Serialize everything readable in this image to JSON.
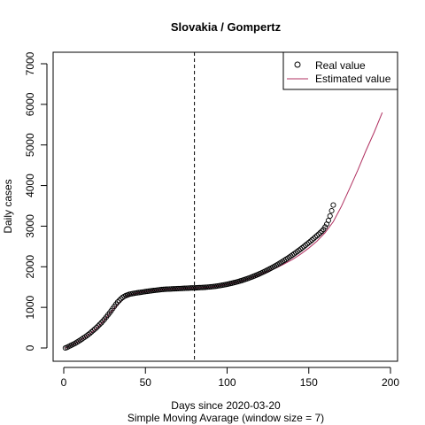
{
  "chart_data": {
    "type": "scatter",
    "title": "Slovakia / Gompertz",
    "xlabel": "Days since 2020-03-20",
    "ylabel": "Daily cases",
    "subtitle": "Simple Moving Avarage (window size = 7)",
    "xlim": [
      0,
      200
    ],
    "ylim": [
      0,
      7000
    ],
    "x_ticks": [
      0,
      50,
      100,
      150,
      200
    ],
    "y_ticks": [
      0,
      1000,
      2000,
      3000,
      4000,
      5000,
      6000,
      7000
    ],
    "vline_x": 80,
    "legend": {
      "position": "top-right",
      "items": [
        {
          "label": "Real value",
          "marker": "circle",
          "color": "#000000"
        },
        {
          "label": "Estimated value",
          "marker": "line",
          "color": "#B03060"
        }
      ]
    },
    "series": [
      {
        "name": "Real value",
        "kind": "points",
        "color": "#000000",
        "x": [
          1,
          2,
          3,
          4,
          5,
          6,
          7,
          8,
          9,
          10,
          11,
          12,
          13,
          14,
          15,
          16,
          17,
          18,
          19,
          20,
          21,
          22,
          23,
          24,
          25,
          26,
          27,
          28,
          29,
          30,
          31,
          32,
          33,
          34,
          35,
          36,
          37,
          38,
          39,
          40,
          41,
          42,
          43,
          44,
          45,
          46,
          47,
          48,
          49,
          50,
          51,
          52,
          53,
          54,
          55,
          56,
          57,
          58,
          59,
          60,
          61,
          62,
          63,
          64,
          65,
          66,
          67,
          68,
          69,
          70,
          71,
          72,
          73,
          74,
          75,
          76,
          77,
          78,
          79,
          80,
          81,
          82,
          83,
          84,
          85,
          86,
          87,
          88,
          89,
          90,
          91,
          92,
          93,
          94,
          95,
          96,
          97,
          98,
          99,
          100,
          101,
          102,
          103,
          104,
          105,
          106,
          107,
          108,
          109,
          110,
          111,
          112,
          113,
          114,
          115,
          116,
          117,
          118,
          119,
          120,
          121,
          122,
          123,
          124,
          125,
          126,
          127,
          128,
          129,
          130,
          131,
          132,
          133,
          134,
          135,
          136,
          137,
          138,
          139,
          140,
          141,
          142,
          143,
          144,
          145,
          146,
          147,
          148,
          149,
          150,
          151,
          152,
          153,
          154,
          155,
          156,
          157,
          158,
          159,
          160,
          161,
          162,
          163,
          164,
          165
        ],
        "y": [
          0,
          15,
          35,
          55,
          75,
          95,
          115,
          140,
          165,
          190,
          215,
          245,
          270,
          300,
          330,
          360,
          395,
          430,
          465,
          500,
          540,
          580,
          620,
          665,
          710,
          760,
          810,
          860,
          915,
          970,
          1025,
          1080,
          1130,
          1170,
          1210,
          1245,
          1270,
          1290,
          1305,
          1320,
          1330,
          1338,
          1345,
          1352,
          1358,
          1364,
          1370,
          1376,
          1382,
          1388,
          1394,
          1400,
          1405,
          1410,
          1415,
          1420,
          1425,
          1430,
          1435,
          1440,
          1443,
          1446,
          1448,
          1450,
          1452,
          1454,
          1456,
          1458,
          1460,
          1462,
          1464,
          1466,
          1468,
          1470,
          1472,
          1474,
          1476,
          1478,
          1479,
          1480,
          1482,
          1484,
          1486,
          1488,
          1490,
          1493,
          1496,
          1499,
          1502,
          1506,
          1510,
          1515,
          1520,
          1526,
          1532,
          1539,
          1546,
          1553,
          1561,
          1569,
          1578,
          1587,
          1596,
          1606,
          1616,
          1627,
          1638,
          1650,
          1662,
          1675,
          1688,
          1702,
          1716,
          1731,
          1746,
          1762,
          1778,
          1795,
          1812,
          1830,
          1848,
          1867,
          1886,
          1906,
          1926,
          1947,
          1968,
          1990,
          2012,
          2035,
          2058,
          2082,
          2106,
          2131,
          2156,
          2182,
          2208,
          2235,
          2262,
          2290,
          2318,
          2347,
          2376,
          2406,
          2436,
          2467,
          2498,
          2530,
          2562,
          2595,
          2628,
          2662,
          2696,
          2731,
          2766,
          2802,
          2838,
          2875,
          2920,
          2980,
          3050,
          3140,
          3250,
          3380,
          3520
        ]
      },
      {
        "name": "Estimated value",
        "kind": "line",
        "color": "#B03060",
        "x": [
          1,
          5,
          10,
          15,
          20,
          25,
          30,
          35,
          40,
          45,
          50,
          55,
          60,
          65,
          70,
          75,
          80,
          85,
          90,
          95,
          100,
          105,
          110,
          115,
          120,
          125,
          130,
          135,
          140,
          145,
          150,
          155,
          160,
          165,
          170,
          175,
          180,
          185,
          190,
          195
        ],
        "y": [
          0,
          70,
          185,
          320,
          480,
          690,
          940,
          1150,
          1300,
          1355,
          1390,
          1415,
          1438,
          1452,
          1462,
          1472,
          1480,
          1487,
          1503,
          1532,
          1569,
          1610,
          1662,
          1731,
          1810,
          1890,
          1970,
          2070,
          2180,
          2310,
          2460,
          2630,
          2840,
          3110,
          3490,
          3930,
          4380,
          4860,
          5310,
          5800
        ]
      }
    ]
  }
}
